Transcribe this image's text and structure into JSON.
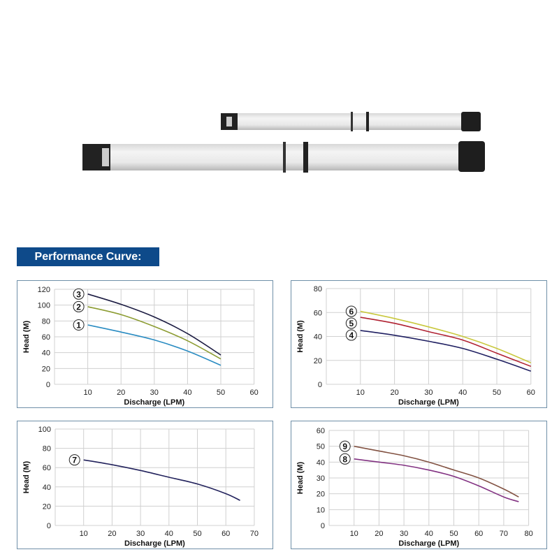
{
  "banner": {
    "title": "Performance Curve:"
  },
  "product": {
    "images": [
      "submersible-pump-small",
      "submersible-pump-large"
    ]
  },
  "chart_data": [
    {
      "type": "line",
      "xlabel": "Discharge (LPM)",
      "ylabel": "Head (M)",
      "xlim": [
        0,
        60
      ],
      "ylim": [
        0,
        120
      ],
      "xticks": [
        10,
        20,
        30,
        40,
        50,
        60
      ],
      "yticks": [
        0,
        20,
        40,
        60,
        80,
        100,
        120
      ],
      "grid": true,
      "series": [
        {
          "name": "3",
          "color": "#1c1c42",
          "x": [
            10,
            20,
            30,
            40,
            50
          ],
          "y": [
            114,
            101,
            85,
            64,
            37
          ]
        },
        {
          "name": "2",
          "color": "#8c9c32",
          "x": [
            10,
            20,
            30,
            40,
            50
          ],
          "y": [
            98,
            88,
            73,
            55,
            32
          ]
        },
        {
          "name": "1",
          "color": "#2a8cc2",
          "x": [
            10,
            20,
            30,
            40,
            50
          ],
          "y": [
            75,
            66,
            56,
            42,
            24
          ]
        }
      ]
    },
    {
      "type": "line",
      "xlabel": "Discharge (LPM)",
      "ylabel": "Head (M)",
      "xlim": [
        0,
        60
      ],
      "ylim": [
        0,
        80
      ],
      "xticks": [
        10,
        20,
        30,
        40,
        50,
        60
      ],
      "yticks": [
        0,
        20,
        40,
        60,
        80
      ],
      "grid": true,
      "series": [
        {
          "name": "6",
          "color": "#c9c83e",
          "x": [
            10,
            20,
            30,
            40,
            50,
            60
          ],
          "y": [
            61,
            55,
            48,
            40,
            30,
            18
          ]
        },
        {
          "name": "5",
          "color": "#b02232",
          "x": [
            10,
            20,
            30,
            40,
            50,
            60
          ],
          "y": [
            56,
            51,
            44,
            37,
            26,
            15
          ]
        },
        {
          "name": "4",
          "color": "#202062",
          "x": [
            10,
            20,
            30,
            40,
            50,
            60
          ],
          "y": [
            45,
            41,
            36,
            30,
            21,
            11
          ]
        }
      ]
    },
    {
      "type": "line",
      "xlabel": "Discharge (LPM)",
      "ylabel": "Head (M)",
      "xlim": [
        0,
        70
      ],
      "ylim": [
        0,
        100
      ],
      "xticks": [
        10,
        20,
        30,
        40,
        50,
        60,
        70
      ],
      "yticks": [
        0,
        20,
        40,
        60,
        80,
        100
      ],
      "grid": true,
      "series": [
        {
          "name": "7",
          "color": "#22225c",
          "x": [
            10,
            20,
            30,
            40,
            50,
            60,
            65
          ],
          "y": [
            68,
            63,
            57,
            50,
            43,
            33,
            26
          ]
        }
      ]
    },
    {
      "type": "line",
      "xlabel": "Discharge (LPM)",
      "ylabel": "Head (M)",
      "xlim": [
        0,
        80
      ],
      "ylim": [
        0,
        60
      ],
      "xticks": [
        10,
        20,
        30,
        40,
        50,
        60,
        70,
        80
      ],
      "yticks": [
        0,
        10,
        20,
        30,
        40,
        50,
        60
      ],
      "grid": true,
      "series": [
        {
          "name": "9",
          "color": "#825242",
          "x": [
            10,
            20,
            30,
            40,
            50,
            60,
            70,
            76
          ],
          "y": [
            50,
            47,
            44,
            40,
            35,
            30,
            23,
            18
          ]
        },
        {
          "name": "8",
          "color": "#823282",
          "x": [
            10,
            20,
            30,
            40,
            50,
            60,
            70,
            76
          ],
          "y": [
            42,
            40,
            38,
            35,
            31,
            25,
            18,
            15
          ]
        }
      ]
    }
  ]
}
